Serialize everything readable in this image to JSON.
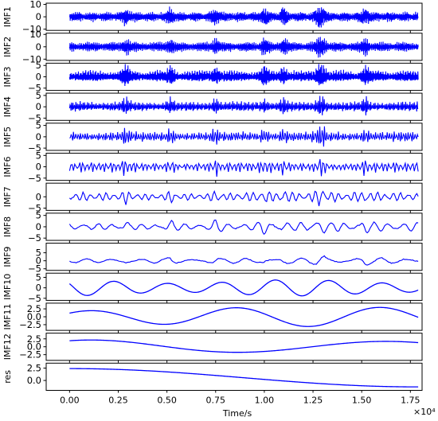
{
  "chart_data": {
    "type": "line",
    "line_color": "#0000ff",
    "xlabel": "Time/s",
    "x_offset_label": "×10⁴",
    "xlim": [
      -0.12,
      1.81
    ],
    "xticks": [
      "0.00",
      "0.25",
      "0.50",
      "0.75",
      "1.00",
      "1.25",
      "1.50",
      "1.75"
    ],
    "xtick_values": [
      0.0,
      0.25,
      0.5,
      0.75,
      1.0,
      1.25,
      1.5,
      1.75
    ],
    "grid": false,
    "panels": [
      {
        "name": "IMF1",
        "ylim": [
          -11,
          11
        ],
        "ytick_values": [
          10,
          0,
          -10
        ],
        "yticks": [
          "10",
          "0",
          "−10"
        ],
        "kind": "noise",
        "amplitude": 4.5,
        "cycles": 900
      },
      {
        "name": "IMF2",
        "ylim": [
          -11,
          11
        ],
        "ytick_values": [
          10,
          0,
          -10
        ],
        "yticks": [
          "10",
          "0",
          "−10"
        ],
        "kind": "noise",
        "amplitude": 4.5,
        "cycles": 600
      },
      {
        "name": "IMF3",
        "ylim": [
          -6,
          6
        ],
        "ytick_values": [
          5,
          0,
          -5
        ],
        "yticks": [
          "5",
          "0",
          "−5"
        ],
        "kind": "noise",
        "amplitude": 3,
        "cycles": 380
      },
      {
        "name": "IMF4",
        "ylim": [
          -6,
          6
        ],
        "ytick_values": [
          5,
          0,
          -5
        ],
        "yticks": [
          "5",
          "0",
          "−5"
        ],
        "kind": "noise",
        "amplitude": 2.6,
        "cycles": 240
      },
      {
        "name": "IMF5",
        "ylim": [
          -6,
          6
        ],
        "ytick_values": [
          5,
          0,
          -5
        ],
        "yticks": [
          "5",
          "0",
          "−5"
        ],
        "kind": "noise",
        "amplitude": 2.6,
        "cycles": 150
      },
      {
        "name": "IMF6",
        "ylim": [
          -6,
          6
        ],
        "ytick_values": [
          5,
          0,
          -5
        ],
        "yticks": [
          "5",
          "0",
          "−5"
        ],
        "kind": "noise",
        "amplitude": 2.6,
        "cycles": 90
      },
      {
        "name": "IMF7",
        "ylim": [
          -6,
          6
        ],
        "ytick_values": [
          0,
          -5
        ],
        "yticks": [
          "0",
          "−5"
        ],
        "kind": "noise",
        "amplitude": 2.2,
        "cycles": 45
      },
      {
        "name": "IMF8",
        "ylim": [
          -6,
          6
        ],
        "ytick_values": [
          5,
          0,
          -5
        ],
        "yticks": [
          "5",
          "0",
          "−5"
        ],
        "kind": "noise",
        "amplitude": 2.2,
        "cycles": 24
      },
      {
        "name": "IMF9",
        "ylim": [
          -6,
          11
        ],
        "ytick_values": [
          5,
          0,
          -5
        ],
        "yticks": [
          "5",
          "0",
          "−5"
        ],
        "kind": "noise",
        "amplitude": 2.2,
        "cycles": 13
      },
      {
        "name": "IMF10",
        "ylim": [
          -6,
          7
        ],
        "ytick_values": [
          5,
          0,
          -5
        ],
        "yticks": [
          "5",
          "0",
          "−5"
        ],
        "kind": "smooth",
        "amplitude": 3.5,
        "cycles": 6.5
      },
      {
        "name": "IMF11",
        "ylim": [
          -4.3,
          4.3
        ],
        "ytick_values": [
          2.5,
          0.0,
          -2.5
        ],
        "yticks": [
          "2.5",
          "0.0",
          "−2.5"
        ],
        "kind": "smooth",
        "amplitude": 2.8,
        "cycles": 2.4
      },
      {
        "name": "IMF12",
        "ylim": [
          -4.3,
          4.3
        ],
        "ytick_values": [
          2.5,
          0.0,
          -2.5
        ],
        "yticks": [
          "2.5",
          "0.0",
          "−2.5"
        ],
        "kind": "smooth",
        "amplitude": 2.8,
        "cycles": 1.2
      },
      {
        "name": "res",
        "ylim": [
          -2,
          3.5
        ],
        "ytick_values": [
          2.5,
          0.0
        ],
        "yticks": [
          "2.5",
          "0.0"
        ],
        "kind": "trend",
        "start": 2.4,
        "end": -1.3
      }
    ]
  }
}
